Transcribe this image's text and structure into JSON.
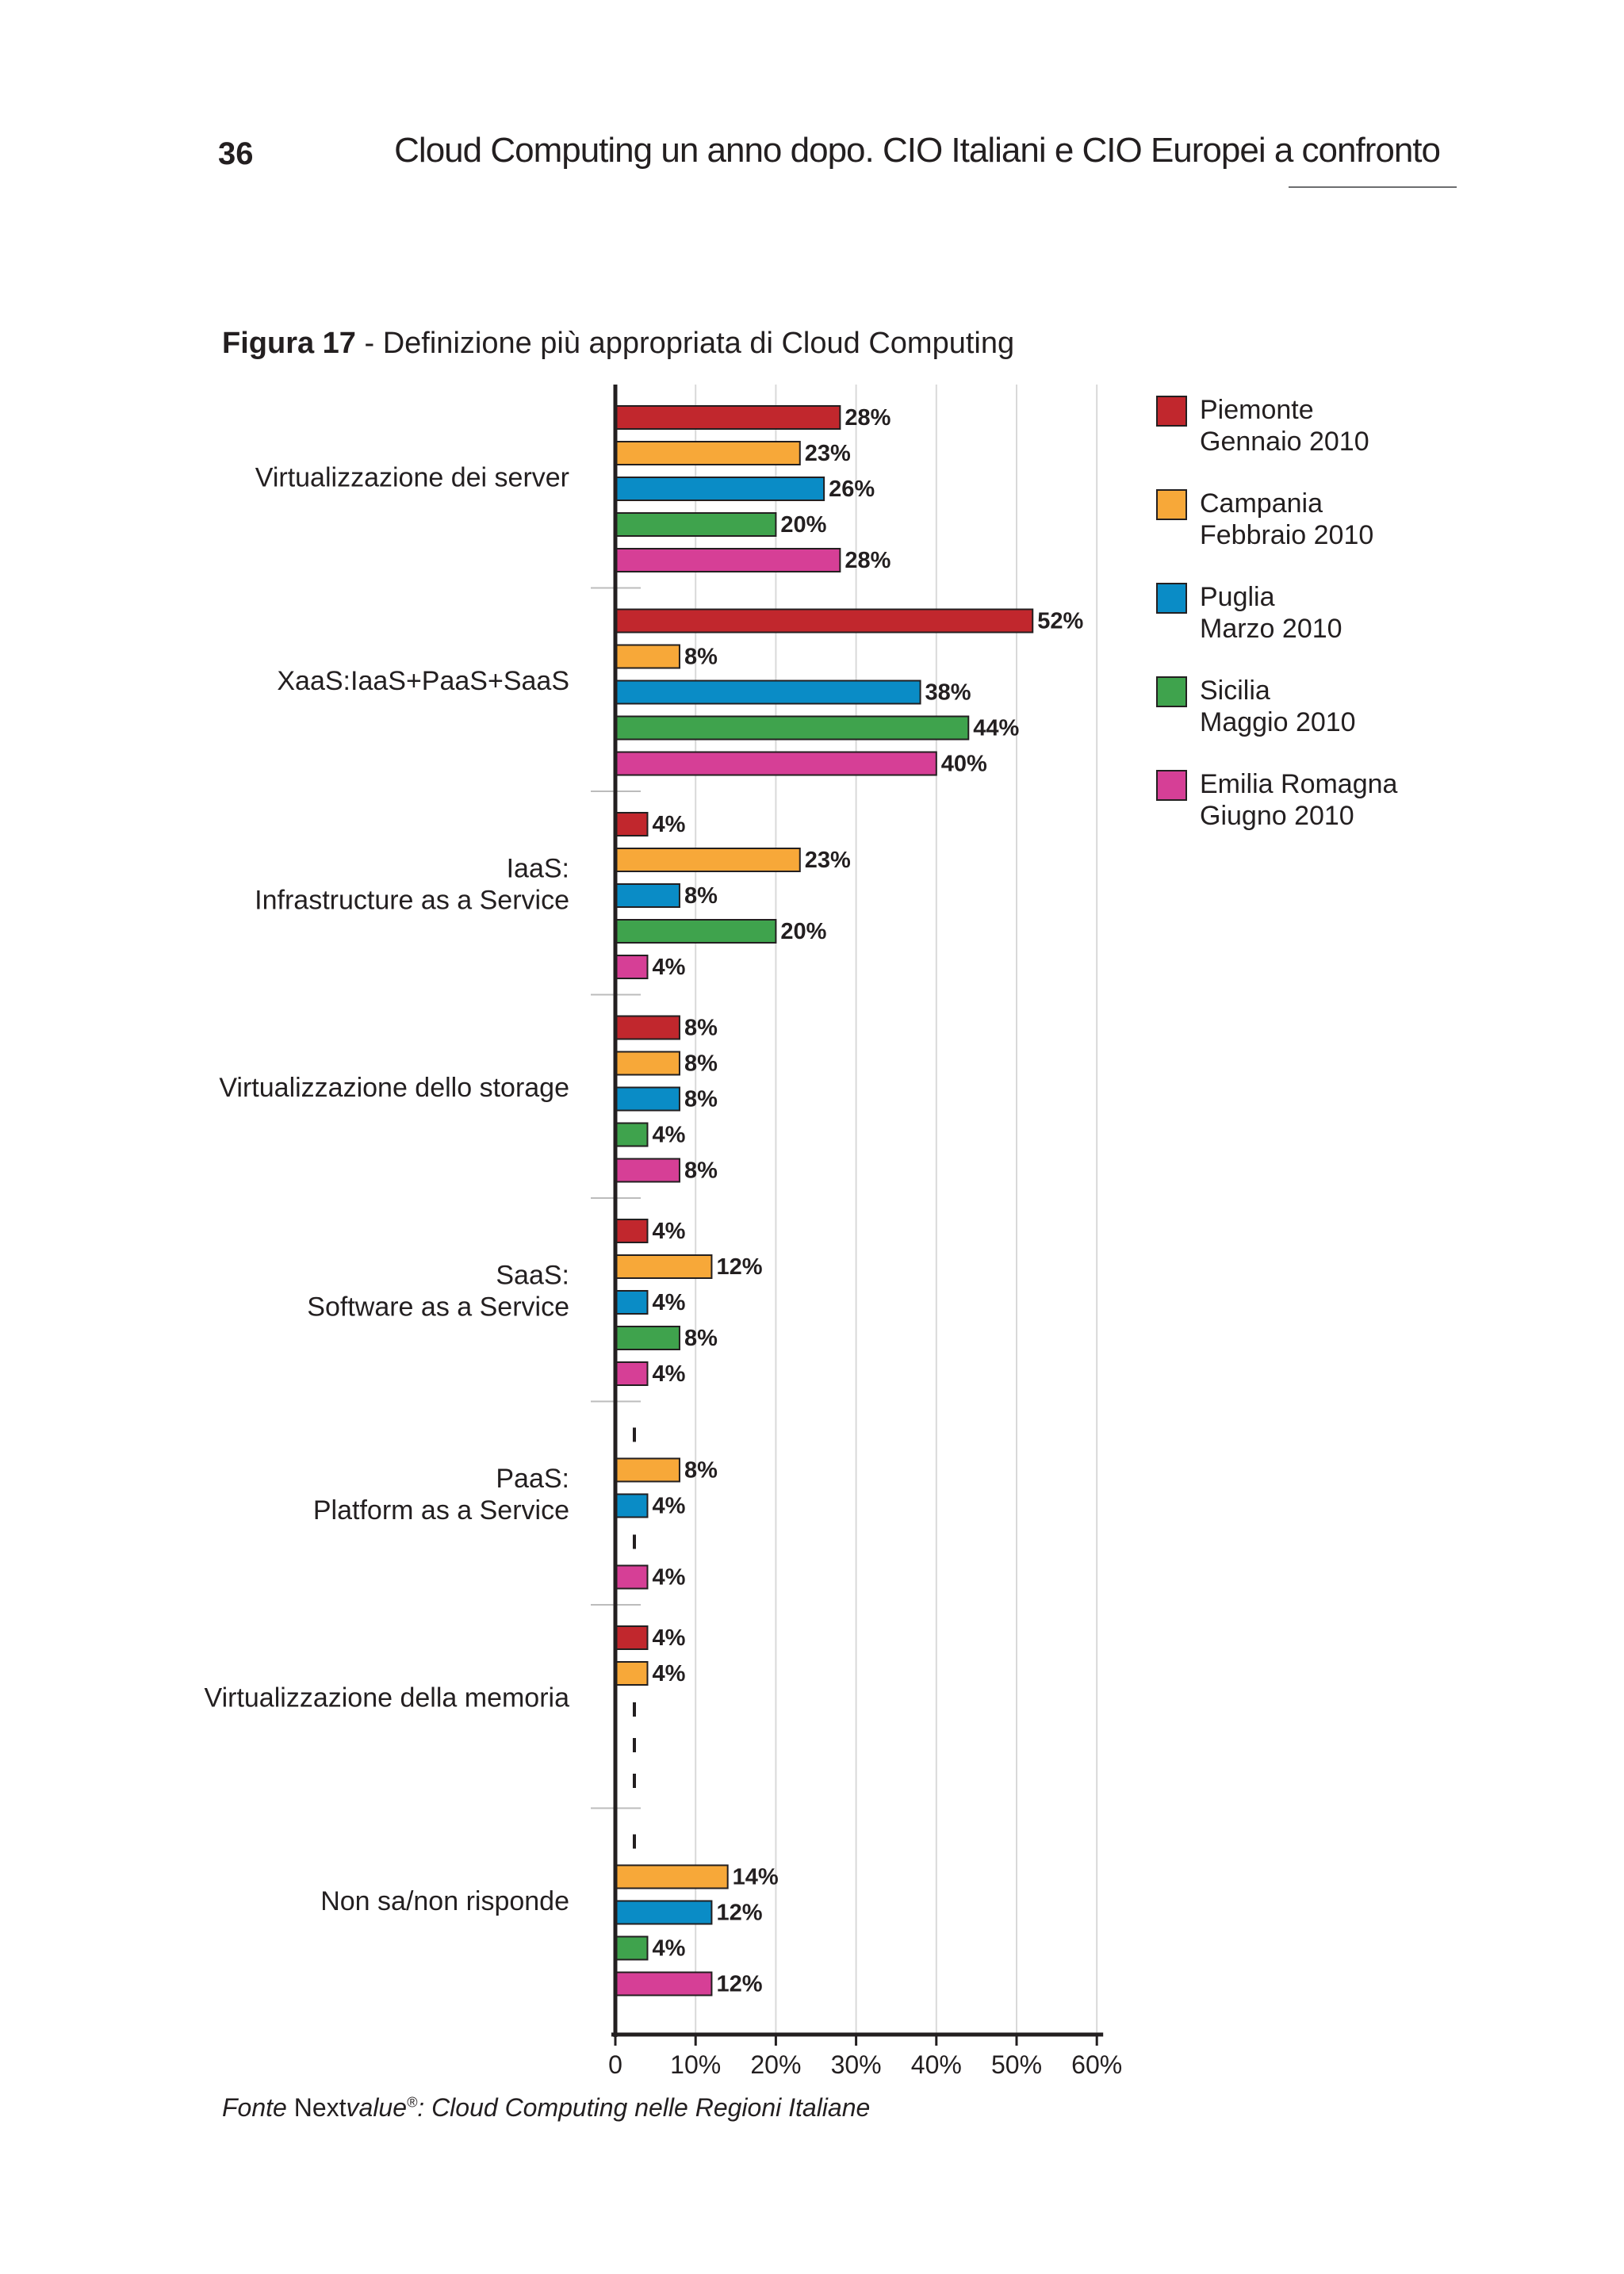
{
  "header": {
    "page_number": "36",
    "running_title": "Cloud Computing un anno dopo. CIO Italiani e CIO Europei a confronto"
  },
  "figure": {
    "label": "Figura 17",
    "separator": " - ",
    "caption": "Definizione più appropriata di Cloud Computing"
  },
  "source": {
    "prefix": "Fonte",
    "brand_a": "Next",
    "brand_b": "value",
    "reg_mark": "®",
    "rest": ": Cloud Computing nelle Regioni Italiane"
  },
  "chart_data": {
    "type": "bar",
    "orientation": "horizontal",
    "title": "Definizione più appropriata di Cloud Computing",
    "categories": [
      [
        "Virtualizzazione dei server"
      ],
      [
        "XaaS:IaaS+PaaS+SaaS"
      ],
      [
        "IaaS:",
        "Infrastructure as a Service"
      ],
      [
        "Virtualizzazione dello storage"
      ],
      [
        "SaaS:",
        "Software as a Service"
      ],
      [
        "PaaS:",
        "Platform as a Service"
      ],
      [
        "Virtualizzazione della memoria"
      ],
      [
        "Non sa/non risponde"
      ]
    ],
    "series": [
      {
        "name": [
          "Piemonte",
          "Gennaio 2010"
        ],
        "color": "#c1272d",
        "values": [
          28,
          52,
          4,
          8,
          4,
          null,
          4,
          null
        ]
      },
      {
        "name": [
          "Campania",
          "Febbraio 2010"
        ],
        "color": "#f7a839",
        "values": [
          23,
          8,
          23,
          8,
          12,
          8,
          4,
          14
        ]
      },
      {
        "name": [
          "Puglia",
          "Marzo 2010"
        ],
        "color": "#0a8cc6",
        "values": [
          26,
          38,
          8,
          8,
          4,
          4,
          null,
          12
        ]
      },
      {
        "name": [
          "Sicilia",
          "Maggio 2010"
        ],
        "color": "#3fa34d",
        "values": [
          20,
          44,
          20,
          4,
          8,
          null,
          null,
          4
        ]
      },
      {
        "name": [
          "Emilia Romagna",
          "Giugno 2010"
        ],
        "color": "#d63f96",
        "values": [
          28,
          40,
          4,
          8,
          4,
          4,
          null,
          12
        ]
      }
    ],
    "missing_marker": "I",
    "value_suffix": "%",
    "xlim": [
      0,
      60
    ],
    "x_ticks": [
      0,
      10,
      20,
      30,
      40,
      50,
      60
    ],
    "x_tick_labels": [
      "0",
      "10%",
      "20%",
      "30%",
      "40%",
      "50%",
      "60%"
    ],
    "grid": true,
    "legend_position": "right"
  }
}
